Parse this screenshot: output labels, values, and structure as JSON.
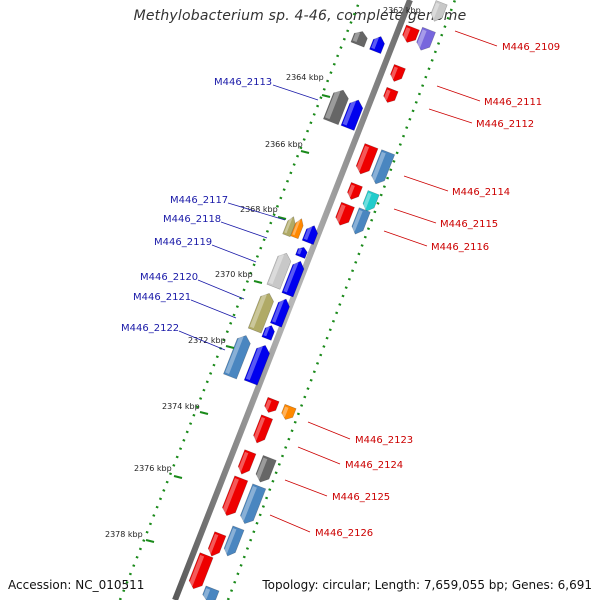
{
  "title": "Methylobacterium sp. 4-46, complete genome",
  "accession": "Accession: NC_010511",
  "summary": "Topology: circular; Length: 7,659,055 bp; Genes: 6,691",
  "top_tick": "2362 kbp",
  "ticks": [
    "2364 kbp",
    "2366 kbp",
    "2368 kbp",
    "2370 kbp",
    "2372 kbp",
    "2374 kbp",
    "2376 kbp",
    "2378 kbp"
  ],
  "genes_left": [
    "M446_2113",
    "M446_2117",
    "M446_2118",
    "M446_2119",
    "M446_2120",
    "M446_2121",
    "M446_2122"
  ],
  "genes_right": [
    "M446_2109",
    "M446_2111",
    "M446_2112",
    "M446_2114",
    "M446_2115",
    "M446_2116",
    "M446_2123",
    "M446_2124",
    "M446_2125",
    "M446_2126"
  ],
  "colors": {
    "forward_label": "#1a1aa8",
    "reverse_label": "#cc0000",
    "backbone": "#8a8a8a",
    "tick_dots": "#1a8a1a",
    "cds_forward": "#0000ee",
    "cds_reverse": "#ee0000",
    "gray": "#666666",
    "steel": "#4a86c0",
    "olive": "#b0aa66",
    "orange": "#ff8800",
    "cyan": "#22cccc",
    "purple": "#7766dd",
    "lightgray": "#c8c8c8"
  }
}
